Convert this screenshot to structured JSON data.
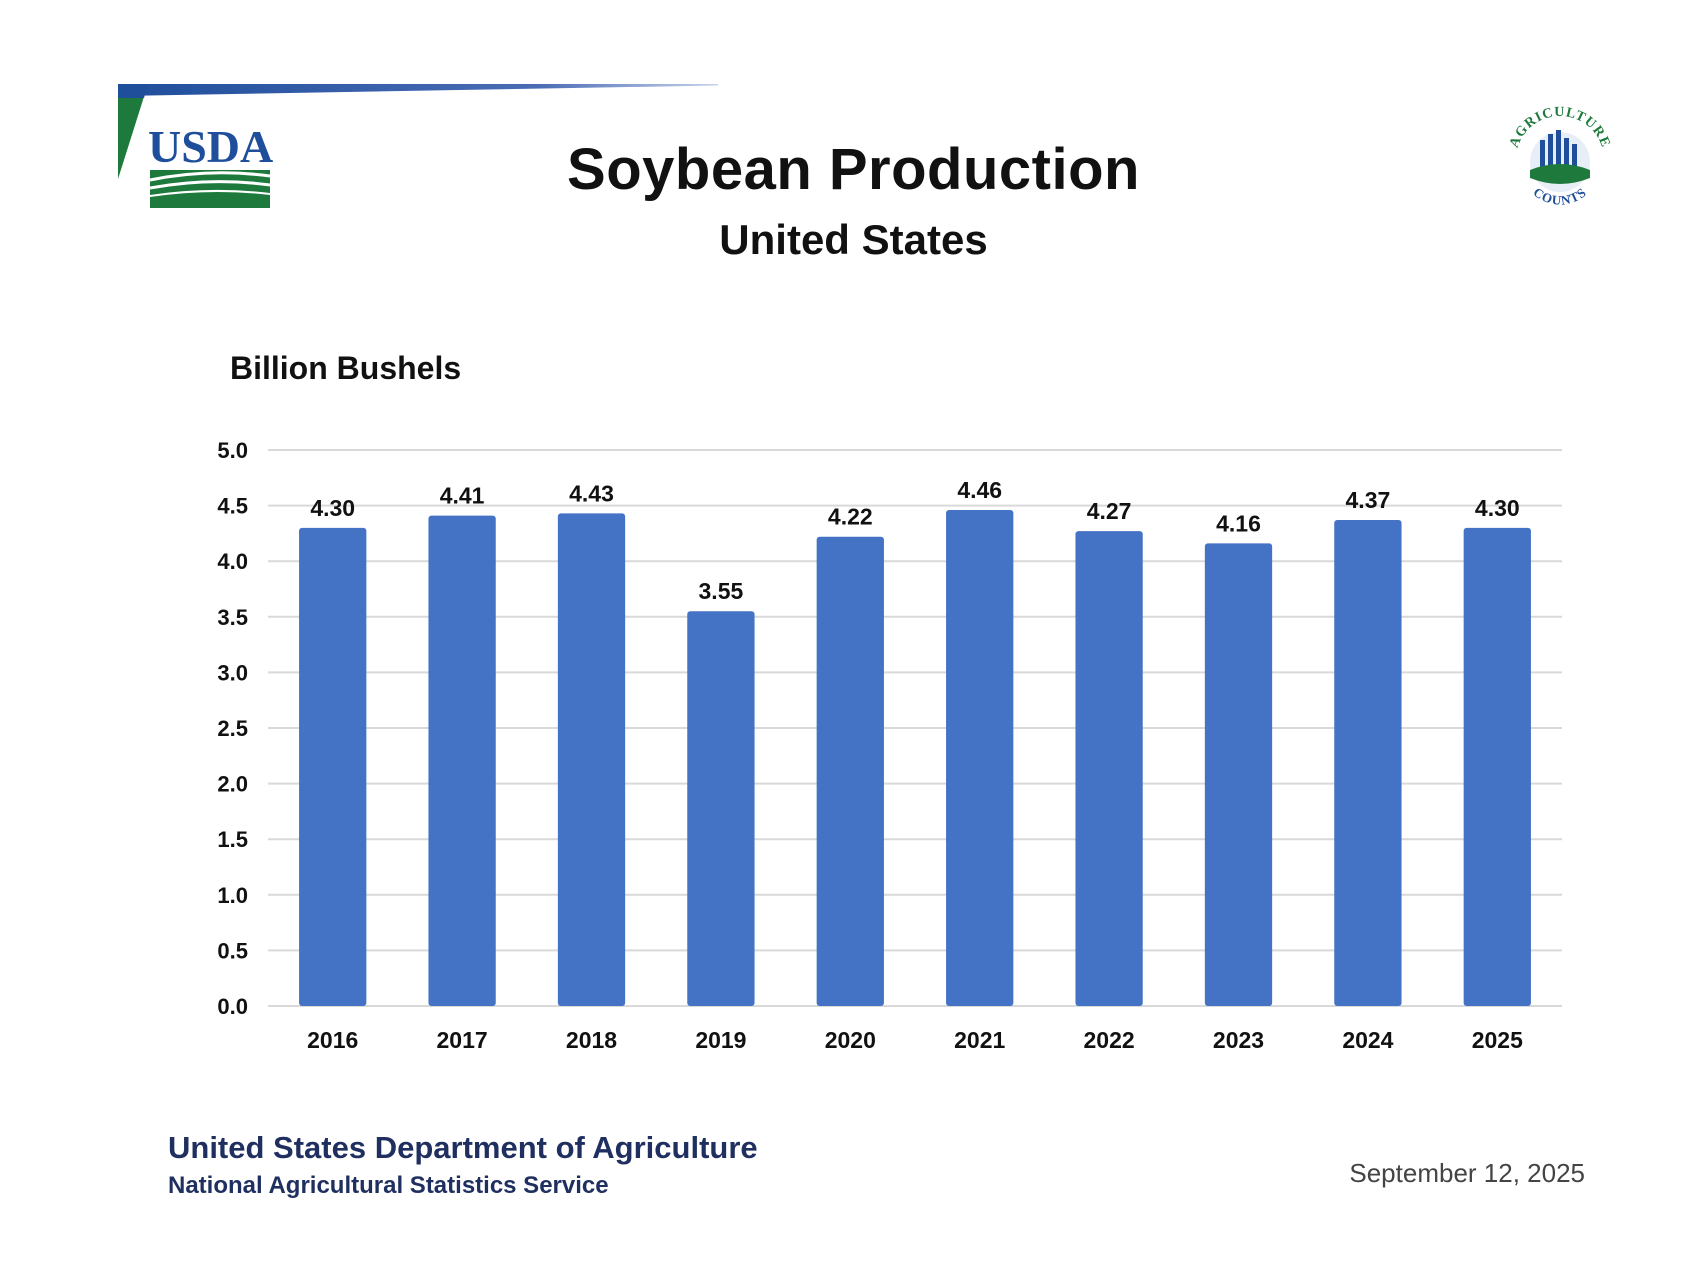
{
  "header": {
    "title": "Soybean Production",
    "subtitle": "United States",
    "logo_text": "USDA",
    "badge_text_top": "AGRICULTURE",
    "badge_text_bottom": "COUNTS"
  },
  "chart_data": {
    "type": "bar",
    "title": "Soybean Production",
    "subtitle": "United States",
    "xlabel": "",
    "ylabel": "Billion Bushels",
    "categories": [
      "2016",
      "2017",
      "2018",
      "2019",
      "2020",
      "2021",
      "2022",
      "2023",
      "2024",
      "2025"
    ],
    "values": [
      4.3,
      4.41,
      4.43,
      3.55,
      4.22,
      4.46,
      4.27,
      4.16,
      4.37,
      4.3
    ],
    "value_labels": [
      "4.30",
      "4.41",
      "4.43",
      "3.55",
      "4.22",
      "4.46",
      "4.27",
      "4.16",
      "4.37",
      "4.30"
    ],
    "ylim": [
      0,
      5
    ],
    "yticks": [
      "0.0",
      "0.5",
      "1.0",
      "1.5",
      "2.0",
      "2.5",
      "3.0",
      "3.5",
      "4.0",
      "4.5",
      "5.0"
    ],
    "grid": true,
    "legend": "none",
    "bar_color": "#4472c4"
  },
  "footer": {
    "org": "United States Department of Agriculture",
    "agency": "National Agricultural Statistics Service",
    "date": "September 12, 2025"
  },
  "colors": {
    "usda_blue": "#1f4e9b",
    "usda_green": "#1e7a3c",
    "footer_text": "#1f2f5f",
    "grid": "#d9d9d9"
  }
}
